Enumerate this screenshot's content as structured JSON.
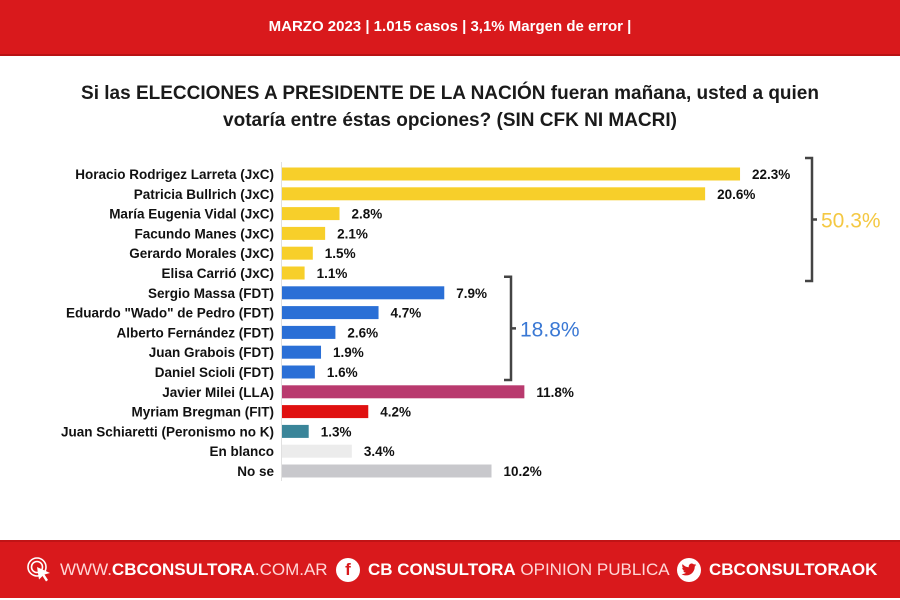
{
  "header": {
    "text": "MARZO 2023 | 1.015 casos  |  3,1% Margen de error  |"
  },
  "colors": {
    "brand_red": "#d9191c",
    "jxc": "#f7cf2a",
    "fdt": "#2a6fd6",
    "lla": "#b93a6e",
    "fit": "#e01010",
    "peronismo_no_k": "#3a8599",
    "blanco": "#ececec",
    "no_se": "#c8c8cc",
    "jxc_total": "#f4c842",
    "fdt_total": "#3a78d4"
  },
  "chart_data": {
    "type": "bar",
    "orientation": "horizontal",
    "title": "Si las ELECCIONES A PRESIDENTE DE LA NACIÓN fueran mañana, usted a quien votaría entre éstas opciones? (SIN CFK NI MACRI)",
    "title_lines": [
      "Si las ELECCIONES A PRESIDENTE DE LA NACIÓN fueran mañana, usted a quien",
      "votaría entre éstas opciones? (SIN CFK NI MACRI)"
    ],
    "xlabel": "",
    "ylabel": "",
    "unit": "%",
    "xlim": [
      0,
      25
    ],
    "grid": false,
    "categories": [
      "Horacio Rodrigez Larreta (JxC)",
      "Patricia Bullrich (JxC)",
      "María Eugenia Vidal (JxC)",
      "Facundo Manes (JxC)",
      "Gerardo Morales (JxC)",
      "Elisa Carrió (JxC)",
      "Sergio Massa (FDT)",
      "Eduardo \"Wado\" de Pedro (FDT)",
      "Alberto Fernández (FDT)",
      "Juan Grabois (FDT)",
      "Daniel Scioli (FDT)",
      "Javier Milei (LLA)",
      "Myriam Bregman (FIT)",
      "Juan Schiaretti (Peronismo no K)",
      "En blanco",
      "No se"
    ],
    "values": [
      22.3,
      20.6,
      2.8,
      2.1,
      1.5,
      1.1,
      7.9,
      4.7,
      2.6,
      1.9,
      1.6,
      11.8,
      4.2,
      1.3,
      3.4,
      10.2
    ],
    "value_labels": [
      "22.3%",
      "20.6%",
      "2.8%",
      "2.1%",
      "1.5%",
      "1.1%",
      "7.9%",
      "4.7%",
      "2.6%",
      "1.9%",
      "1.6%",
      "11.8%",
      "4.2%",
      "1.3%",
      "3.4%",
      "10.2%"
    ],
    "bar_color_keys": [
      "jxc",
      "jxc",
      "jxc",
      "jxc",
      "jxc",
      "jxc",
      "fdt",
      "fdt",
      "fdt",
      "fdt",
      "fdt",
      "lla",
      "fit",
      "peronismo_no_k",
      "blanco",
      "no_se"
    ],
    "group_totals": [
      {
        "name": "JxC",
        "from_index": 0,
        "to_index": 5,
        "label": "50.3%",
        "color_key": "jxc_total"
      },
      {
        "name": "FDT",
        "from_index": 6,
        "to_index": 10,
        "label": "18.8%",
        "color_key": "fdt_total"
      }
    ]
  },
  "footer": {
    "website_prefix": "WWW.",
    "website_bold": "CBCONSULTORA",
    "website_suffix": ".COM.AR",
    "facebook_bold": "CB CONSULTORA",
    "facebook_light": " OPINION PUBLICA",
    "twitter_bold": "CBCONSULTORAOK"
  }
}
